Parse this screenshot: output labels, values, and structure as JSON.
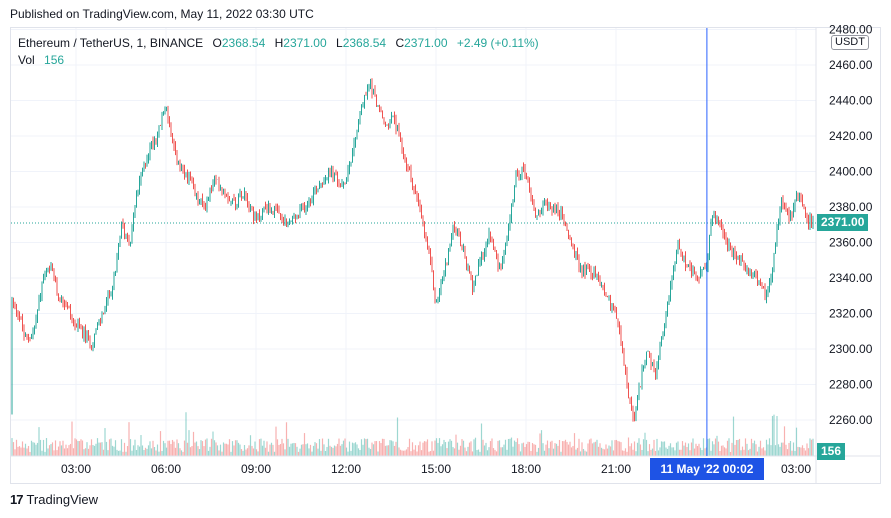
{
  "published_line": "Published on TradingView.com, May 11, 2022 03:30 UTC",
  "legend": {
    "symbol": "Ethereum / TetherUS, 1, BINANCE",
    "o_label": "O",
    "o_value": "2368.54",
    "h_label": "H",
    "h_value": "2371.00",
    "l_label": "L",
    "l_value": "2368.54",
    "c_label": "C",
    "c_value": "2371.00",
    "change": "+2.49 (+0.11%)",
    "vol_label": "Vol",
    "vol_value": "156"
  },
  "price_axis": {
    "currency": "USDT",
    "last_price": "2371.00",
    "last_volume": "156"
  },
  "crosshair_time_label": "11 May '22   00:02",
  "footer": {
    "brand": "TradingView",
    "logo": "17"
  },
  "colors": {
    "up": "#26a69a",
    "down": "#ef5350",
    "crosshair": "#2962ff",
    "label_bg": "#1e53e5"
  },
  "chart_data": {
    "type": "candlestick",
    "symbol": "Ethereum / TetherUS",
    "interval": "1",
    "exchange": "BINANCE",
    "x_tick_labels": [
      "03:00",
      "06:00",
      "09:00",
      "12:00",
      "15:00",
      "18:00",
      "21:00",
      "03:00"
    ],
    "y_tick_labels": [
      "2260.00",
      "2280.00",
      "2300.00",
      "2320.00",
      "2340.00",
      "2360.00",
      "2380.00",
      "2400.00",
      "2420.00",
      "2440.00",
      "2460.00",
      "2480.00"
    ],
    "ylim": [
      2249,
      2482
    ],
    "x_hours_range": [
      0.25,
      27.7
    ],
    "grid": true,
    "price_path": [
      {
        "t": 0.25,
        "p": 2265
      },
      {
        "t": 0.4,
        "p": 2290
      },
      {
        "t": 0.7,
        "p": 2340
      },
      {
        "t": 0.9,
        "p": 2325
      },
      {
        "t": 1.1,
        "p": 2320
      },
      {
        "t": 1.3,
        "p": 2305
      },
      {
        "t": 1.6,
        "p": 2310
      },
      {
        "t": 1.9,
        "p": 2340
      },
      {
        "t": 2.2,
        "p": 2345
      },
      {
        "t": 2.4,
        "p": 2330
      },
      {
        "t": 2.7,
        "p": 2325
      },
      {
        "t": 2.9,
        "p": 2315
      },
      {
        "t": 3.2,
        "p": 2310
      },
      {
        "t": 3.5,
        "p": 2303
      },
      {
        "t": 3.9,
        "p": 2320
      },
      {
        "t": 4.3,
        "p": 2340
      },
      {
        "t": 4.5,
        "p": 2370
      },
      {
        "t": 4.8,
        "p": 2360
      },
      {
        "t": 5.0,
        "p": 2385
      },
      {
        "t": 5.3,
        "p": 2405
      },
      {
        "t": 5.5,
        "p": 2415
      },
      {
        "t": 5.7,
        "p": 2420
      },
      {
        "t": 6.0,
        "p": 2438
      },
      {
        "t": 6.2,
        "p": 2415
      },
      {
        "t": 6.5,
        "p": 2400
      },
      {
        "t": 6.8,
        "p": 2395
      },
      {
        "t": 7.0,
        "p": 2385
      },
      {
        "t": 7.3,
        "p": 2380
      },
      {
        "t": 7.6,
        "p": 2395
      },
      {
        "t": 7.9,
        "p": 2390
      },
      {
        "t": 8.3,
        "p": 2382
      },
      {
        "t": 8.6,
        "p": 2390
      },
      {
        "t": 9.0,
        "p": 2372
      },
      {
        "t": 9.3,
        "p": 2380
      },
      {
        "t": 9.6,
        "p": 2378
      },
      {
        "t": 10.0,
        "p": 2370
      },
      {
        "t": 10.4,
        "p": 2375
      },
      {
        "t": 10.8,
        "p": 2385
      },
      {
        "t": 11.2,
        "p": 2395
      },
      {
        "t": 11.5,
        "p": 2400
      },
      {
        "t": 11.9,
        "p": 2390
      },
      {
        "t": 12.2,
        "p": 2410
      },
      {
        "t": 12.5,
        "p": 2435
      },
      {
        "t": 12.8,
        "p": 2450
      },
      {
        "t": 13.0,
        "p": 2440
      },
      {
        "t": 13.3,
        "p": 2425
      },
      {
        "t": 13.6,
        "p": 2430
      },
      {
        "t": 13.9,
        "p": 2410
      },
      {
        "t": 14.2,
        "p": 2395
      },
      {
        "t": 14.5,
        "p": 2375
      },
      {
        "t": 14.8,
        "p": 2350
      },
      {
        "t": 15.0,
        "p": 2325
      },
      {
        "t": 15.3,
        "p": 2345
      },
      {
        "t": 15.6,
        "p": 2370
      },
      {
        "t": 15.9,
        "p": 2355
      },
      {
        "t": 16.2,
        "p": 2335
      },
      {
        "t": 16.5,
        "p": 2350
      },
      {
        "t": 16.8,
        "p": 2365
      },
      {
        "t": 17.1,
        "p": 2345
      },
      {
        "t": 17.4,
        "p": 2365
      },
      {
        "t": 17.7,
        "p": 2400
      },
      {
        "t": 18.0,
        "p": 2400
      },
      {
        "t": 18.3,
        "p": 2375
      },
      {
        "t": 18.6,
        "p": 2380
      },
      {
        "t": 18.9,
        "p": 2380
      },
      {
        "t": 19.2,
        "p": 2375
      },
      {
        "t": 19.5,
        "p": 2360
      },
      {
        "t": 19.8,
        "p": 2345
      },
      {
        "t": 20.1,
        "p": 2345
      },
      {
        "t": 20.4,
        "p": 2340
      },
      {
        "t": 20.7,
        "p": 2330
      },
      {
        "t": 21.0,
        "p": 2320
      },
      {
        "t": 21.2,
        "p": 2300
      },
      {
        "t": 21.4,
        "p": 2275
      },
      {
        "t": 21.6,
        "p": 2258
      },
      {
        "t": 21.8,
        "p": 2280
      },
      {
        "t": 22.0,
        "p": 2300
      },
      {
        "t": 22.3,
        "p": 2285
      },
      {
        "t": 22.6,
        "p": 2310
      },
      {
        "t": 22.9,
        "p": 2345
      },
      {
        "t": 23.1,
        "p": 2360
      },
      {
        "t": 23.4,
        "p": 2345
      },
      {
        "t": 23.7,
        "p": 2340
      },
      {
        "t": 24.0,
        "p": 2345
      },
      {
        "t": 24.2,
        "p": 2375
      },
      {
        "t": 24.5,
        "p": 2370
      },
      {
        "t": 24.8,
        "p": 2355
      },
      {
        "t": 25.1,
        "p": 2350
      },
      {
        "t": 25.4,
        "p": 2345
      },
      {
        "t": 25.7,
        "p": 2340
      },
      {
        "t": 26.0,
        "p": 2330
      },
      {
        "t": 26.2,
        "p": 2345
      },
      {
        "t": 26.5,
        "p": 2385
      },
      {
        "t": 26.8,
        "p": 2375
      },
      {
        "t": 27.1,
        "p": 2388
      },
      {
        "t": 27.4,
        "p": 2372
      },
      {
        "t": 27.7,
        "p": 2371
      }
    ],
    "last_price": 2371.0,
    "crosshair_time_hours": 24.03,
    "volume_last": 156
  }
}
